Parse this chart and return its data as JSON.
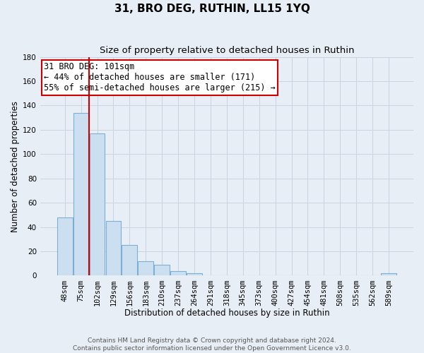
{
  "title": "31, BRO DEG, RUTHIN, LL15 1YQ",
  "subtitle": "Size of property relative to detached houses in Ruthin",
  "xlabel": "Distribution of detached houses by size in Ruthin",
  "ylabel": "Number of detached properties",
  "bar_labels": [
    "48sqm",
    "75sqm",
    "102sqm",
    "129sqm",
    "156sqm",
    "183sqm",
    "210sqm",
    "237sqm",
    "264sqm",
    "291sqm",
    "318sqm",
    "345sqm",
    "373sqm",
    "400sqm",
    "427sqm",
    "454sqm",
    "481sqm",
    "508sqm",
    "535sqm",
    "562sqm",
    "589sqm"
  ],
  "bar_values": [
    48,
    134,
    117,
    45,
    25,
    12,
    9,
    4,
    2,
    0,
    0,
    0,
    0,
    0,
    0,
    0,
    0,
    0,
    0,
    0,
    2
  ],
  "bar_color": "#ccdff0",
  "bar_edge_color": "#7bafd4",
  "ylim": [
    0,
    180
  ],
  "yticks": [
    0,
    20,
    40,
    60,
    80,
    100,
    120,
    140,
    160,
    180
  ],
  "vline_x_index": 2,
  "vline_color": "#cc0000",
  "annotation_title": "31 BRO DEG: 101sqm",
  "annotation_line1": "← 44% of detached houses are smaller (171)",
  "annotation_line2": "55% of semi-detached houses are larger (215) →",
  "annotation_box_color": "#ffffff",
  "annotation_box_edge": "#cc0000",
  "footer1": "Contains HM Land Registry data © Crown copyright and database right 2024.",
  "footer2": "Contains public sector information licensed under the Open Government Licence v3.0.",
  "bg_color": "#e8eef5",
  "grid_color": "#c8d4e0",
  "title_fontsize": 11,
  "subtitle_fontsize": 9.5,
  "axis_label_fontsize": 8.5,
  "tick_fontsize": 7.5,
  "footer_fontsize": 6.5,
  "annotation_fontsize": 8.5
}
